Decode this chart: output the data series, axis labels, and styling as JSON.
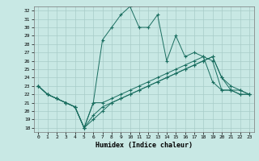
{
  "xlabel": "Humidex (Indice chaleur)",
  "xlim": [
    -0.5,
    23.5
  ],
  "ylim": [
    17.5,
    32.5
  ],
  "yticks": [
    18,
    19,
    20,
    21,
    22,
    23,
    24,
    25,
    26,
    27,
    28,
    29,
    30,
    31,
    32
  ],
  "xticks": [
    0,
    1,
    2,
    3,
    4,
    5,
    6,
    7,
    8,
    9,
    10,
    11,
    12,
    13,
    14,
    15,
    16,
    17,
    18,
    19,
    20,
    21,
    22,
    23
  ],
  "bg_color": "#c8e8e4",
  "grid_color": "#a8ccc8",
  "line_color": "#1a6e60",
  "line1": [
    23.0,
    22.0,
    21.5,
    21.0,
    20.5,
    18.0,
    21.0,
    28.5,
    30.0,
    31.5,
    32.5,
    30.0,
    30.0,
    31.5,
    26.0,
    29.0,
    26.5,
    27.0,
    26.5,
    26.0,
    22.5,
    22.5,
    22.0,
    22.0
  ],
  "line2": [
    23.0,
    22.0,
    21.5,
    21.0,
    20.5,
    18.0,
    21.0,
    21.0,
    21.5,
    22.0,
    22.5,
    23.0,
    23.5,
    24.0,
    24.5,
    25.0,
    25.5,
    26.0,
    26.5,
    23.5,
    22.5,
    22.5,
    22.0,
    22.0
  ],
  "line3": [
    23.0,
    22.0,
    21.5,
    21.0,
    20.5,
    18.0,
    19.5,
    20.5,
    21.0,
    21.5,
    22.0,
    22.5,
    23.0,
    23.5,
    24.0,
    24.5,
    25.0,
    25.5,
    26.0,
    26.5,
    24.0,
    23.0,
    22.5,
    22.0
  ],
  "line4": [
    23.0,
    22.0,
    21.5,
    21.0,
    20.5,
    18.0,
    19.0,
    20.0,
    21.0,
    21.5,
    22.0,
    22.5,
    23.0,
    23.5,
    24.0,
    24.5,
    25.0,
    25.5,
    26.0,
    26.5,
    24.0,
    22.5,
    22.5,
    22.0
  ]
}
